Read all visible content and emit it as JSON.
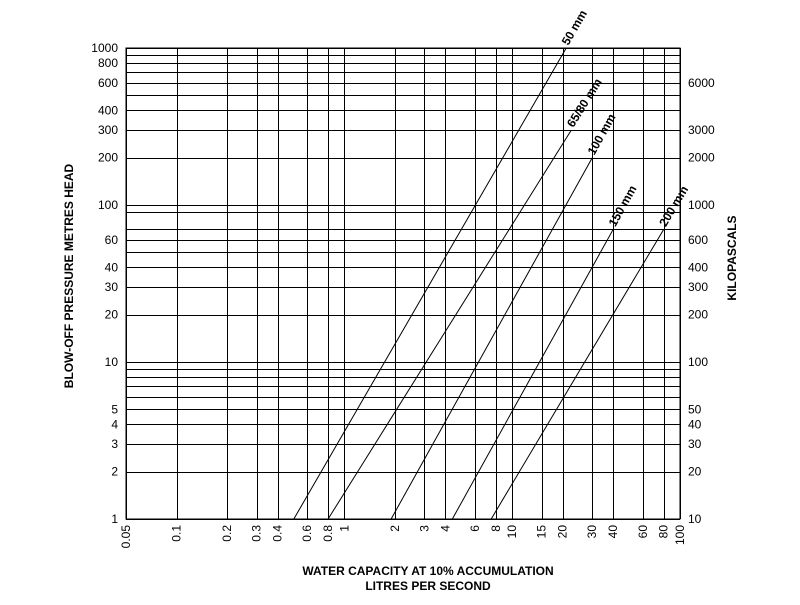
{
  "chart_data": {
    "type": "line",
    "x_scale": "log",
    "y_scale": "log",
    "grid": true,
    "xlim": [
      0.05,
      100
    ],
    "ylim": [
      1,
      1000
    ],
    "xlabel": "WATER CAPACITY AT 10% ACCUMULATION",
    "xlabel2": "LITRES PER SECOND",
    "ylabel_left": "BLOW-OFF PRESSURE  METRES HEAD",
    "ylabel_right": "KILOPASCALS",
    "x_ticks": [
      {
        "value": 0.05,
        "label": "0.05"
      },
      {
        "value": 0.1,
        "label": "0.1"
      },
      {
        "value": 0.2,
        "label": "0.2"
      },
      {
        "value": 0.3,
        "label": "0.3"
      },
      {
        "value": 0.4,
        "label": "0.4"
      },
      {
        "value": 0.6,
        "label": "0.6"
      },
      {
        "value": 0.8,
        "label": "0.8"
      },
      {
        "value": 1,
        "label": "1"
      },
      {
        "value": 2,
        "label": "2"
      },
      {
        "value": 3,
        "label": "3"
      },
      {
        "value": 4,
        "label": "4"
      },
      {
        "value": 6,
        "label": "6"
      },
      {
        "value": 8,
        "label": "8"
      },
      {
        "value": 10,
        "label": "10"
      },
      {
        "value": 15,
        "label": "15"
      },
      {
        "value": 20,
        "label": "20"
      },
      {
        "value": 30,
        "label": "30"
      },
      {
        "value": 40,
        "label": "40"
      },
      {
        "value": 60,
        "label": "60"
      },
      {
        "value": 80,
        "label": "80"
      },
      {
        "value": 100,
        "label": "100"
      }
    ],
    "y_ticks_left": [
      {
        "value": 1,
        "label": "1"
      },
      {
        "value": 2,
        "label": "2"
      },
      {
        "value": 3,
        "label": "3"
      },
      {
        "value": 4,
        "label": "4"
      },
      {
        "value": 5,
        "label": "5"
      },
      {
        "value": 10,
        "label": "10"
      },
      {
        "value": 20,
        "label": "20"
      },
      {
        "value": 30,
        "label": "30"
      },
      {
        "value": 40,
        "label": "40"
      },
      {
        "value": 60,
        "label": "60"
      },
      {
        "value": 100,
        "label": "100"
      },
      {
        "value": 200,
        "label": "200"
      },
      {
        "value": 300,
        "label": "300"
      },
      {
        "value": 400,
        "label": "400"
      },
      {
        "value": 600,
        "label": "600"
      },
      {
        "value": 800,
        "label": "800"
      },
      {
        "value": 1000,
        "label": "1000"
      }
    ],
    "y_extra_gridlines": [
      6,
      7,
      8,
      9,
      50,
      70,
      90,
      500,
      700,
      900
    ],
    "y_ticks_right": [
      {
        "value": 1,
        "label": "10"
      },
      {
        "value": 2,
        "label": "20"
      },
      {
        "value": 3,
        "label": "30"
      },
      {
        "value": 4,
        "label": "40"
      },
      {
        "value": 5,
        "label": "50"
      },
      {
        "value": 10,
        "label": "100"
      },
      {
        "value": 20,
        "label": "200"
      },
      {
        "value": 30,
        "label": "300"
      },
      {
        "value": 40,
        "label": "400"
      },
      {
        "value": 60,
        "label": "600"
      },
      {
        "value": 100,
        "label": "1000"
      },
      {
        "value": 200,
        "label": "2000"
      },
      {
        "value": 300,
        "label": "3000"
      },
      {
        "value": 600,
        "label": "6000"
      }
    ],
    "series": [
      {
        "name": "50 mm",
        "points": [
          [
            0.5,
            1
          ],
          [
            21,
            1000
          ]
        ]
      },
      {
        "name": "65/80 mm",
        "points": [
          [
            0.8,
            1
          ],
          [
            22.5,
            300
          ]
        ]
      },
      {
        "name": "100 mm",
        "points": [
          [
            1.9,
            1
          ],
          [
            30,
            200
          ]
        ]
      },
      {
        "name": "150 mm",
        "points": [
          [
            4.4,
            1
          ],
          [
            40,
            70
          ]
        ]
      },
      {
        "name": "200 mm",
        "points": [
          [
            7.5,
            1
          ],
          [
            80,
            70
          ]
        ]
      }
    ]
  }
}
